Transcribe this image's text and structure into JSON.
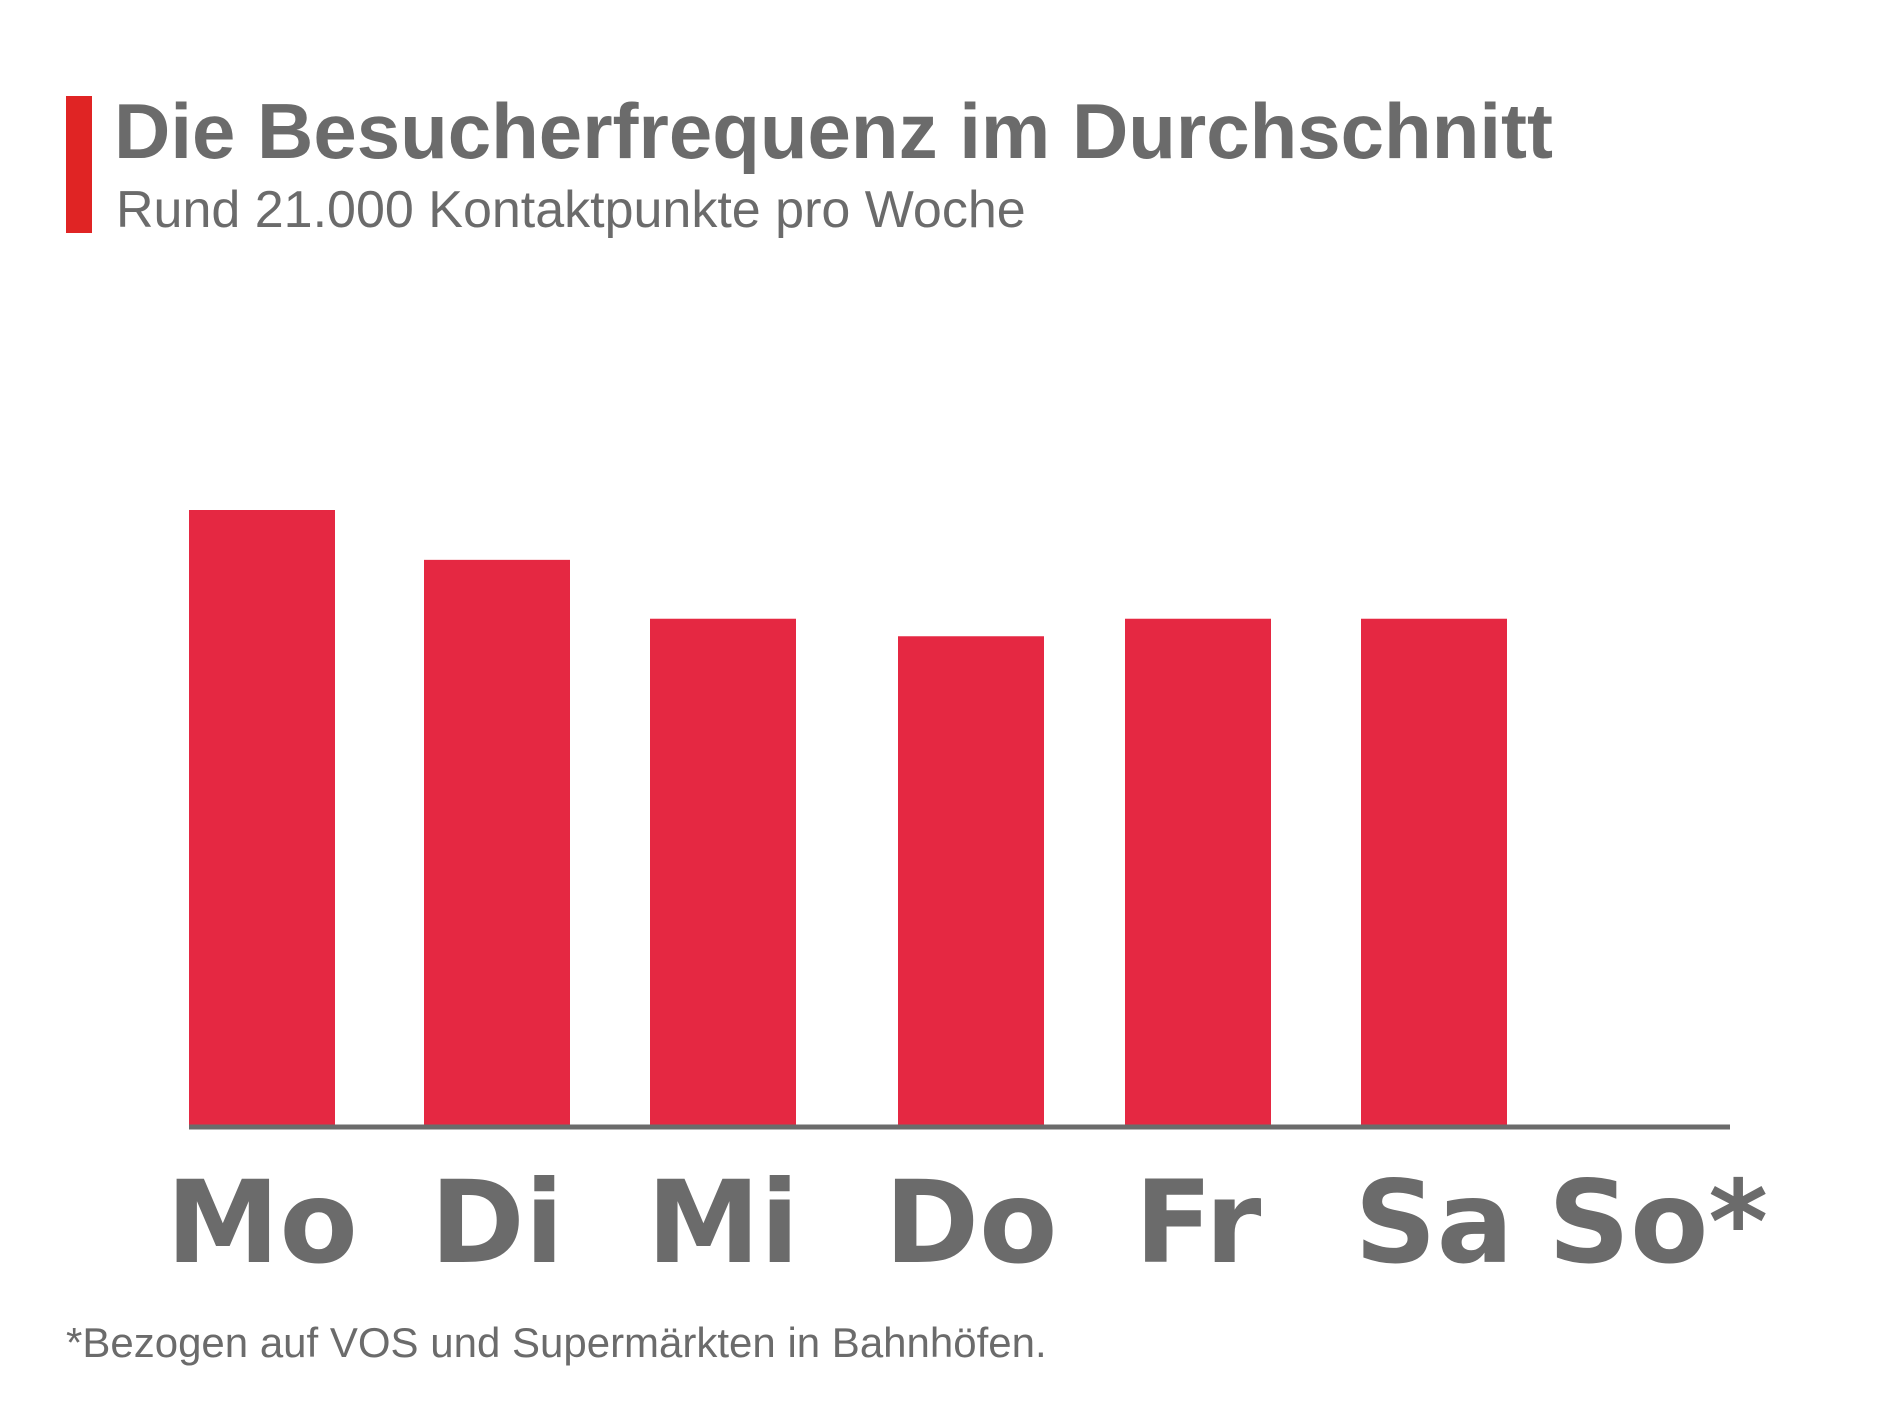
{
  "header": {
    "title": "Die Besucherfrequenz im Durchschnitt",
    "subtitle": "Rund 21.000 Kontaktpunkte pro Woche"
  },
  "footnote": "*Bezogen auf VOS und Supermärkten in Bahnhöfen.",
  "colors": {
    "accent": "#e02424",
    "bar": "#e52842",
    "text": "#6b6b6b",
    "axis": "#6b6b6b"
  },
  "chart_data": {
    "type": "bar",
    "title": "Die Besucherfrequenz im Durchschnitt",
    "subtitle": "Rund 21.000 Kontaktpunkte pro Woche",
    "categories": [
      "Mo",
      "Di",
      "Mi",
      "Do",
      "Fr",
      "Sa",
      "So*"
    ],
    "values": [
      3416,
      3140,
      2814,
      2717,
      2814,
      2814,
      0
    ],
    "xlabel": "",
    "ylabel": "",
    "ylim": [
      0,
      3416
    ],
    "grid": false,
    "legend": "none"
  }
}
